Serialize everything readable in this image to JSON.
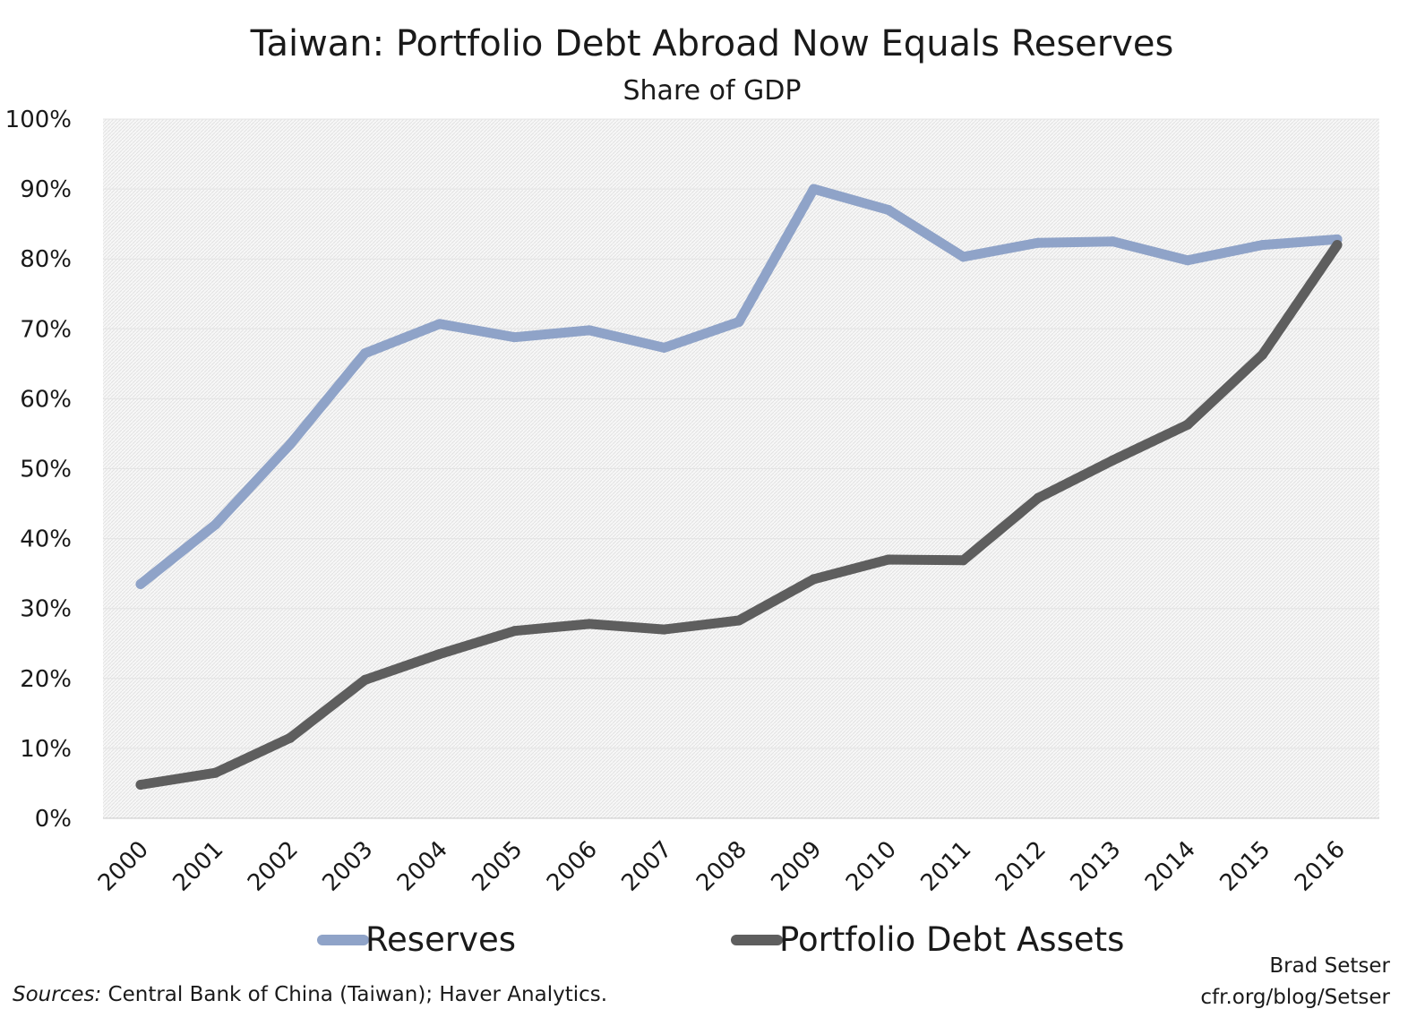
{
  "chart_data": {
    "type": "line",
    "title": "Taiwan: Portfolio Debt Abroad Now Equals Reserves",
    "subtitle": "Share of GDP",
    "xlabel": "",
    "ylabel": "",
    "categories": [
      "2000",
      "2001",
      "2002",
      "2003",
      "2004",
      "2005",
      "2006",
      "2007",
      "2008",
      "2009",
      "2010",
      "2011",
      "2012",
      "2013",
      "2014",
      "2015",
      "2016"
    ],
    "ylim": [
      0,
      100
    ],
    "yticks": [
      "0%",
      "10%",
      "20%",
      "30%",
      "40%",
      "50%",
      "60%",
      "70%",
      "80%",
      "90%",
      "100%"
    ],
    "grid": true,
    "legend_position": "bottom",
    "series": [
      {
        "name": "Reserves",
        "color": "#8FA3C8",
        "values": [
          33.5,
          42.0,
          53.5,
          66.5,
          70.7,
          68.8,
          69.8,
          67.3,
          71.0,
          90.0,
          87.0,
          80.3,
          82.3,
          82.5,
          79.8,
          82.0,
          82.8
        ]
      },
      {
        "name": "Portfolio Debt Assets",
        "color": "#5E5E5E",
        "values": [
          4.8,
          6.5,
          11.5,
          19.8,
          23.5,
          26.8,
          27.8,
          27.0,
          28.3,
          34.2,
          37.0,
          36.9,
          45.8,
          51.2,
          56.3,
          66.3,
          82.0
        ]
      }
    ]
  },
  "footer": {
    "sources_label": "Sources:",
    "sources_text": " Central Bank of China (Taiwan); Haver Analytics.",
    "author": "Brad Setser",
    "url": "cfr.org/blog/Setser"
  }
}
